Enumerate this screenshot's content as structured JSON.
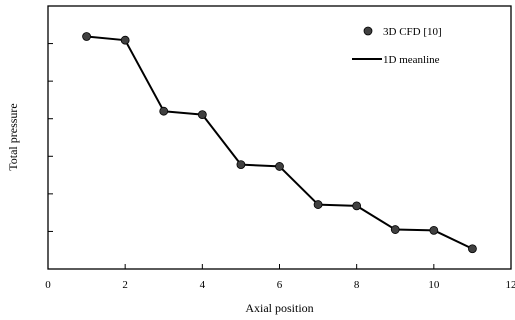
{
  "chart_data": {
    "type": "line",
    "xlabel": "Axial position",
    "ylabel": "Total pressure",
    "xlim": [
      0,
      12
    ],
    "ylim": [
      0,
      1
    ],
    "x_ticks": [
      0,
      2,
      4,
      6,
      8,
      10,
      12
    ],
    "x_tick_labels": [
      "0",
      "2",
      "4",
      "6",
      "8",
      "10",
      "12"
    ],
    "y_tick_count": 6,
    "y_tick_labels_shown": false,
    "grid": false,
    "legend_position": "top-right",
    "series": [
      {
        "name": "3D CFD [10]",
        "style": "markers",
        "color": "#404040",
        "x": [
          1,
          2,
          3,
          4,
          5,
          6,
          7,
          8,
          9,
          10,
          11
        ],
        "y": [
          0.884,
          0.87,
          0.6,
          0.587,
          0.397,
          0.39,
          0.245,
          0.24,
          0.15,
          0.147,
          0.077
        ]
      },
      {
        "name": "1D meanline",
        "style": "line",
        "color": "#000000",
        "x": [
          1,
          2,
          3,
          4,
          5,
          6,
          7,
          8,
          9,
          10,
          11
        ],
        "y": [
          0.884,
          0.87,
          0.6,
          0.587,
          0.397,
          0.39,
          0.245,
          0.24,
          0.15,
          0.147,
          0.077
        ]
      }
    ]
  }
}
